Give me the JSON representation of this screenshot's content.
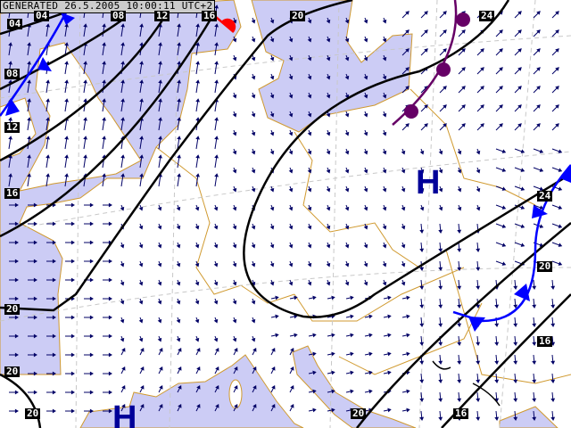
{
  "header": {
    "generated": "GENERATED 26.5.2005 10:00:11 UTC+2"
  },
  "isobar_labels": [
    "04",
    "04",
    "08",
    "12",
    "16",
    "20",
    "24",
    "08",
    "12",
    "16",
    "20",
    "20",
    "20",
    "20",
    "16",
    "16",
    "20",
    "24"
  ],
  "pressure_centers": [
    {
      "label": "H"
    },
    {
      "label": "H"
    }
  ],
  "colors": {
    "sea": "#ccccf5",
    "land": "#ffffff",
    "borders": "#d09a30",
    "isobars": "#000000",
    "wind_arrows": "#000066",
    "cold_front": "#0000ff",
    "warm_front": "#ff0000",
    "occluded_front": "#660066",
    "pressure_center": "#000099"
  }
}
